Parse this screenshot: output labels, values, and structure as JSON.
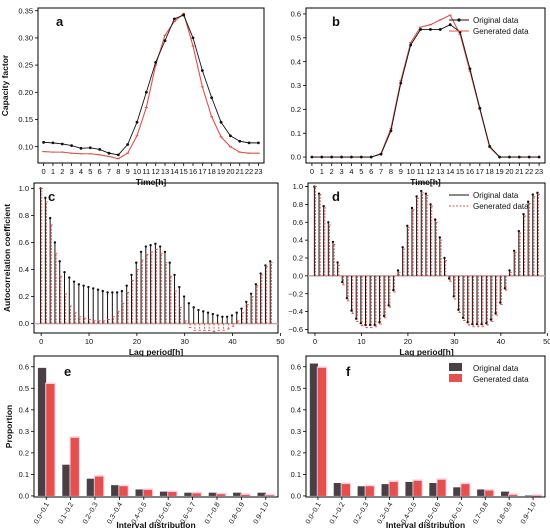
{
  "colors": {
    "original": "#111111",
    "generated": "#e0504a",
    "bar_original": "#4a3f45",
    "bar_generated": "#e4504d",
    "halo": "#f6c8dc"
  },
  "chart_data": [
    {
      "id": "a",
      "type": "line",
      "letter": "a",
      "xlabel": "Time[h]",
      "ylabel": "Capacity factor",
      "xlim": [
        -0.6,
        23.6
      ],
      "ylim": [
        0.07,
        0.355
      ],
      "xticks": [
        0,
        1,
        2,
        3,
        4,
        5,
        6,
        7,
        8,
        9,
        10,
        11,
        12,
        13,
        14,
        15,
        16,
        17,
        18,
        19,
        20,
        21,
        22,
        23
      ],
      "yticks": [
        0.1,
        0.15,
        0.2,
        0.25,
        0.3,
        0.35
      ],
      "ytick_labels": [
        "0.10",
        "0.15",
        "0.20",
        "0.25",
        "0.30",
        "0.35"
      ],
      "x": [
        0,
        1,
        2,
        3,
        4,
        5,
        6,
        7,
        8,
        9,
        10,
        11,
        12,
        13,
        14,
        15,
        16,
        17,
        18,
        19,
        20,
        21,
        22,
        23
      ],
      "series": [
        {
          "key": "original",
          "values": [
            0.108,
            0.107,
            0.105,
            0.102,
            0.097,
            0.098,
            0.095,
            0.088,
            0.085,
            0.104,
            0.145,
            0.2,
            0.255,
            0.295,
            0.335,
            0.342,
            0.3,
            0.24,
            0.19,
            0.145,
            0.12,
            0.11,
            0.107,
            0.107
          ]
        },
        {
          "key": "generated",
          "values": [
            0.091,
            0.09,
            0.09,
            0.088,
            0.087,
            0.087,
            0.085,
            0.082,
            0.078,
            0.088,
            0.12,
            0.172,
            0.25,
            0.305,
            0.33,
            0.345,
            0.285,
            0.21,
            0.155,
            0.118,
            0.1,
            0.09,
            0.088,
            0.088
          ]
        }
      ]
    },
    {
      "id": "b",
      "type": "line",
      "letter": "b",
      "xlabel": "Time[h]",
      "ylabel": "",
      "xlim": [
        -0.6,
        23.6
      ],
      "ylim": [
        -0.025,
        0.625
      ],
      "xticks": [
        0,
        1,
        2,
        3,
        4,
        5,
        6,
        7,
        8,
        9,
        10,
        11,
        12,
        13,
        14,
        15,
        16,
        17,
        18,
        19,
        20,
        21,
        22,
        23
      ],
      "yticks": [
        0.0,
        0.1,
        0.2,
        0.3,
        0.4,
        0.5,
        0.6
      ],
      "ytick_labels": [
        "0.0",
        "0.1",
        "0.2",
        "0.3",
        "0.4",
        "0.5",
        "0.6"
      ],
      "legend": {
        "placement": "top-right",
        "entries": [
          "Original data",
          "Generated data"
        ]
      },
      "x": [
        0,
        1,
        2,
        3,
        4,
        5,
        6,
        7,
        8,
        9,
        10,
        11,
        12,
        13,
        14,
        15,
        16,
        17,
        18,
        19,
        20,
        21,
        22,
        23
      ],
      "series": [
        {
          "key": "original",
          "name": "Original data",
          "values": [
            0,
            0,
            0,
            0,
            0,
            0,
            0,
            0.012,
            0.11,
            0.31,
            0.47,
            0.535,
            0.535,
            0.535,
            0.555,
            0.525,
            0.37,
            0.205,
            0.045,
            0,
            0,
            0,
            0,
            0
          ]
        },
        {
          "key": "generated",
          "name": "Generated data",
          "values": [
            0,
            0,
            0,
            0,
            0,
            0,
            0,
            0.015,
            0.12,
            0.32,
            0.48,
            0.545,
            0.555,
            0.575,
            0.595,
            0.515,
            0.36,
            0.2,
            0.04,
            0,
            0,
            0,
            0,
            0
          ]
        }
      ]
    },
    {
      "id": "c",
      "type": "stem",
      "letter": "c",
      "xlabel": "Lag period[h]",
      "ylabel": "Autocorrelation coefficient",
      "xlim": [
        -1.5,
        49.5
      ],
      "ylim": [
        -0.07,
        1.04
      ],
      "xticks": [
        0,
        10,
        20,
        30,
        40,
        50
      ],
      "yticks": [
        0.0,
        0.2,
        0.4,
        0.6,
        0.8,
        1.0
      ],
      "ytick_labels": [
        "0.0",
        "0.2",
        "0.4",
        "0.6",
        "0.8",
        "1.0"
      ],
      "x": [
        0,
        1,
        2,
        3,
        4,
        5,
        6,
        7,
        8,
        9,
        10,
        11,
        12,
        13,
        14,
        15,
        16,
        17,
        18,
        19,
        20,
        21,
        22,
        23,
        24,
        25,
        26,
        27,
        28,
        29,
        30,
        31,
        32,
        33,
        34,
        35,
        36,
        37,
        38,
        39,
        40,
        41,
        42,
        43,
        44,
        45,
        46,
        47,
        48
      ],
      "series": [
        {
          "key": "original",
          "values": [
            1.0,
            0.93,
            0.78,
            0.6,
            0.46,
            0.38,
            0.34,
            0.31,
            0.29,
            0.28,
            0.27,
            0.26,
            0.25,
            0.24,
            0.23,
            0.23,
            0.23,
            0.24,
            0.28,
            0.36,
            0.45,
            0.53,
            0.57,
            0.58,
            0.59,
            0.57,
            0.53,
            0.45,
            0.36,
            0.27,
            0.2,
            0.15,
            0.12,
            0.1,
            0.09,
            0.08,
            0.07,
            0.06,
            0.05,
            0.05,
            0.06,
            0.08,
            0.11,
            0.16,
            0.22,
            0.29,
            0.37,
            0.43,
            0.46
          ]
        },
        {
          "key": "generated",
          "values": [
            1.0,
            0.9,
            0.73,
            0.52,
            0.35,
            0.22,
            0.13,
            0.08,
            0.05,
            0.04,
            0.03,
            0.02,
            0.02,
            0.02,
            0.03,
            0.05,
            0.09,
            0.15,
            0.23,
            0.32,
            0.4,
            0.47,
            0.51,
            0.53,
            0.55,
            0.52,
            0.45,
            0.35,
            0.24,
            0.12,
            0.02,
            -0.03,
            -0.05,
            -0.05,
            -0.05,
            -0.05,
            -0.06,
            -0.05,
            -0.05,
            -0.04,
            -0.02,
            0.02,
            0.08,
            0.14,
            0.2,
            0.28,
            0.36,
            0.42,
            0.45
          ]
        }
      ]
    },
    {
      "id": "d",
      "type": "stem",
      "letter": "d",
      "xlabel": "Lag period[h]",
      "ylabel": "",
      "xlim": [
        -1.5,
        49.5
      ],
      "ylim": [
        -0.64,
        1.04
      ],
      "xticks": [
        0,
        10,
        20,
        30,
        40,
        50
      ],
      "yticks": [
        -0.6,
        -0.4,
        -0.2,
        0.0,
        0.2,
        0.4,
        0.6,
        0.8,
        1.0
      ],
      "ytick_labels": [
        "−0.6",
        "−0.4",
        "−0.2",
        "0.0",
        "0.2",
        "0.4",
        "0.6",
        "0.8",
        "1.0"
      ],
      "legend": {
        "placement": "top-right",
        "entries": [
          "Original data",
          "Generated data"
        ]
      },
      "x": [
        0,
        1,
        2,
        3,
        4,
        5,
        6,
        7,
        8,
        9,
        10,
        11,
        12,
        13,
        14,
        15,
        16,
        17,
        18,
        19,
        20,
        21,
        22,
        23,
        24,
        25,
        26,
        27,
        28,
        29,
        30,
        31,
        32,
        33,
        34,
        35,
        36,
        37,
        38,
        39,
        40,
        41,
        42,
        43,
        44,
        45,
        46,
        47,
        48
      ],
      "series": [
        {
          "key": "original",
          "name": "Original data",
          "values": [
            1.0,
            0.92,
            0.78,
            0.6,
            0.38,
            0.15,
            -0.07,
            -0.25,
            -0.39,
            -0.48,
            -0.53,
            -0.55,
            -0.55,
            -0.55,
            -0.52,
            -0.45,
            -0.33,
            -0.16,
            0.06,
            0.32,
            0.56,
            0.76,
            0.89,
            0.95,
            0.92,
            0.8,
            0.63,
            0.43,
            0.2,
            -0.03,
            -0.23,
            -0.38,
            -0.47,
            -0.52,
            -0.54,
            -0.54,
            -0.54,
            -0.53,
            -0.49,
            -0.42,
            -0.3,
            -0.14,
            0.06,
            0.28,
            0.5,
            0.69,
            0.83,
            0.91,
            0.93
          ]
        },
        {
          "key": "generated",
          "name": "Generated data",
          "values": [
            1.0,
            0.91,
            0.76,
            0.57,
            0.35,
            0.12,
            -0.1,
            -0.28,
            -0.42,
            -0.51,
            -0.56,
            -0.58,
            -0.58,
            -0.57,
            -0.54,
            -0.47,
            -0.35,
            -0.18,
            0.04,
            0.3,
            0.54,
            0.74,
            0.87,
            0.93,
            0.9,
            0.78,
            0.6,
            0.4,
            0.17,
            -0.06,
            -0.26,
            -0.41,
            -0.5,
            -0.55,
            -0.57,
            -0.57,
            -0.57,
            -0.55,
            -0.51,
            -0.44,
            -0.32,
            -0.16,
            0.04,
            0.26,
            0.48,
            0.67,
            0.81,
            0.89,
            0.91
          ]
        }
      ]
    },
    {
      "id": "e",
      "type": "bar",
      "letter": "e",
      "xlabel": "Interval distribution",
      "ylabel": "Proportion",
      "ylim": [
        -0.005,
        0.65
      ],
      "yticks": [
        0.0,
        0.1,
        0.2,
        0.3,
        0.4,
        0.5,
        0.6
      ],
      "ytick_labels": [
        "0.0",
        "0.1",
        "0.2",
        "0.3",
        "0.4",
        "0.5",
        "0.6"
      ],
      "categories": [
        "0.0~0.1",
        "0.1~0.2",
        "0.2~0.3",
        "0.3~0.4",
        "0.4~0.5",
        "0.5~0.6",
        "0.6~0.7",
        "0.7~0.8",
        "0.8~0.9",
        "0.9~1.0"
      ],
      "series": [
        {
          "key": "bar_original",
          "values": [
            0.595,
            0.145,
            0.08,
            0.05,
            0.03,
            0.02,
            0.015,
            0.015,
            0.015,
            0.015
          ]
        },
        {
          "key": "bar_generated",
          "values": [
            0.52,
            0.27,
            0.09,
            0.045,
            0.028,
            0.018,
            0.012,
            0.008,
            0.005,
            0.003
          ]
        }
      ]
    },
    {
      "id": "f",
      "type": "bar",
      "letter": "f",
      "xlabel": "Interval distribution",
      "ylabel": "",
      "ylim": [
        -0.005,
        0.65
      ],
      "yticks": [
        0.0,
        0.1,
        0.2,
        0.3,
        0.4,
        0.5,
        0.6
      ],
      "ytick_labels": [
        "0.0",
        "0.1",
        "0.2",
        "0.3",
        "0.4",
        "0.5",
        "0.6"
      ],
      "legend": {
        "placement": "top-right",
        "entries": [
          "Original data",
          "Generated data"
        ]
      },
      "categories": [
        "0.0~0.1",
        "0.1~0.2",
        "0.2~0.3",
        "0.3~0.4",
        "0.4~0.5",
        "0.5~0.6",
        "0.6~0.7",
        "0.7~0.8",
        "0.8~0.9",
        "0.9~1.0"
      ],
      "series": [
        {
          "key": "bar_original",
          "name": "Original data",
          "values": [
            0.615,
            0.06,
            0.045,
            0.055,
            0.065,
            0.06,
            0.04,
            0.03,
            0.02,
            0.002
          ]
        },
        {
          "key": "bar_generated",
          "name": "Generated data",
          "values": [
            0.595,
            0.055,
            0.045,
            0.065,
            0.07,
            0.075,
            0.055,
            0.025,
            0.005,
            0.001
          ]
        }
      ]
    }
  ]
}
